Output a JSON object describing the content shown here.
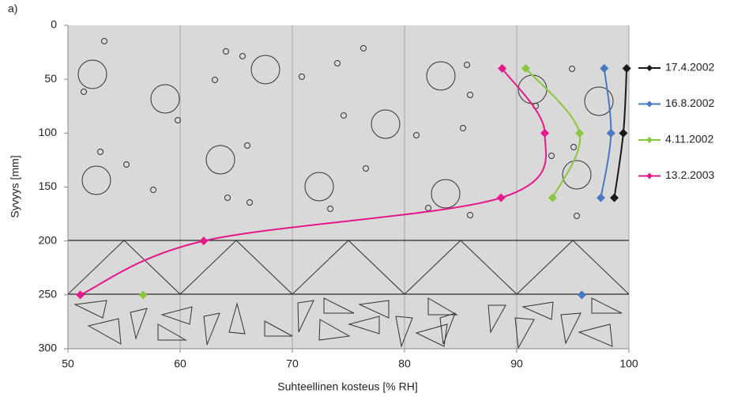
{
  "chart_data": {
    "type": "line",
    "label": "a)",
    "x_label": "Suhteellinen kosteus [% RH]",
    "y_label": "Syvyys [mm]",
    "xlim": [
      50,
      100
    ],
    "xticks": [
      50,
      60,
      70,
      80,
      90,
      100
    ],
    "ylim": [
      0,
      300
    ],
    "yticks": [
      0,
      50,
      100,
      150,
      200,
      250,
      300
    ],
    "y_inverted": true,
    "grid": true,
    "legend": "right",
    "series": [
      {
        "name": "17.4.2002",
        "color": "#1a1a1a",
        "x": [
          99.8,
          99.5,
          98.7
        ],
        "y": [
          40,
          100,
          160
        ]
      },
      {
        "name": "16.8.2002",
        "color": "#4a78c2",
        "x": [
          97.8,
          98.4,
          97.5,
          null,
          95.8
        ],
        "y": [
          40,
          100,
          160,
          null,
          250
        ]
      },
      {
        "name": "4.11.2002",
        "color": "#8cc63f",
        "x": [
          90.8,
          95.6,
          93.2,
          null,
          56.7
        ],
        "y": [
          40,
          100,
          160,
          null,
          250
        ]
      },
      {
        "name": "13.2.2003",
        "color": "#e6198a",
        "x": [
          88.7,
          92.5,
          88.6,
          62.1,
          51.1
        ],
        "y": [
          40,
          100,
          160,
          200,
          250
        ]
      }
    ]
  }
}
